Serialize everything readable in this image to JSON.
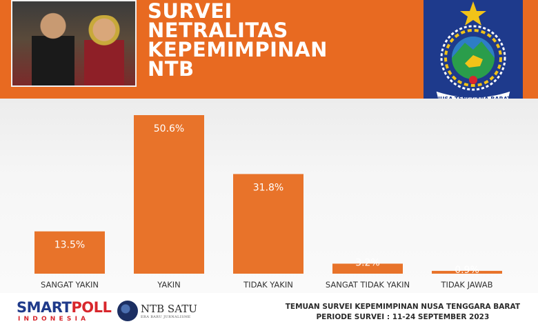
{
  "header": {
    "title_lines": [
      "SURVEI",
      "NETRALITAS",
      "KEPEMIMPINAN",
      "NTB"
    ],
    "background_color": "#e86a21",
    "emblem": {
      "icon": "nusa-tenggara-barat-emblem-icon",
      "text": "NUSA TENGGARA BARAT"
    }
  },
  "chart_data": {
    "type": "bar",
    "categories": [
      "SANGAT YAKIN",
      "YAKIN",
      "TIDAK YAKIN",
      "SANGAT TIDAK YAKIN",
      "TIDAK JAWAB"
    ],
    "values": [
      13.5,
      50.6,
      31.8,
      3.2,
      0.9
    ],
    "value_labels": [
      "13.5%",
      "50.6%",
      "31.8%",
      "3.2%",
      "0.9%"
    ],
    "bar_color": "#e8732a",
    "ylim": [
      0,
      55
    ],
    "grid": false,
    "legend": "none"
  },
  "footer": {
    "logo1_part_a": "SMART",
    "logo1_part_b": "POLL",
    "logo1_sub": "INDONESIA",
    "logo2_main": "NTB SATU",
    "logo2_sub": "ERA BARU JURNALISME",
    "right_line1": "TEMUAN SURVEI KEPEMIMPINAN NUSA TENGGARA BARAT",
    "right_line2": "PERIODE SURVEI : 11-24 SEPTEMBER 2023"
  }
}
